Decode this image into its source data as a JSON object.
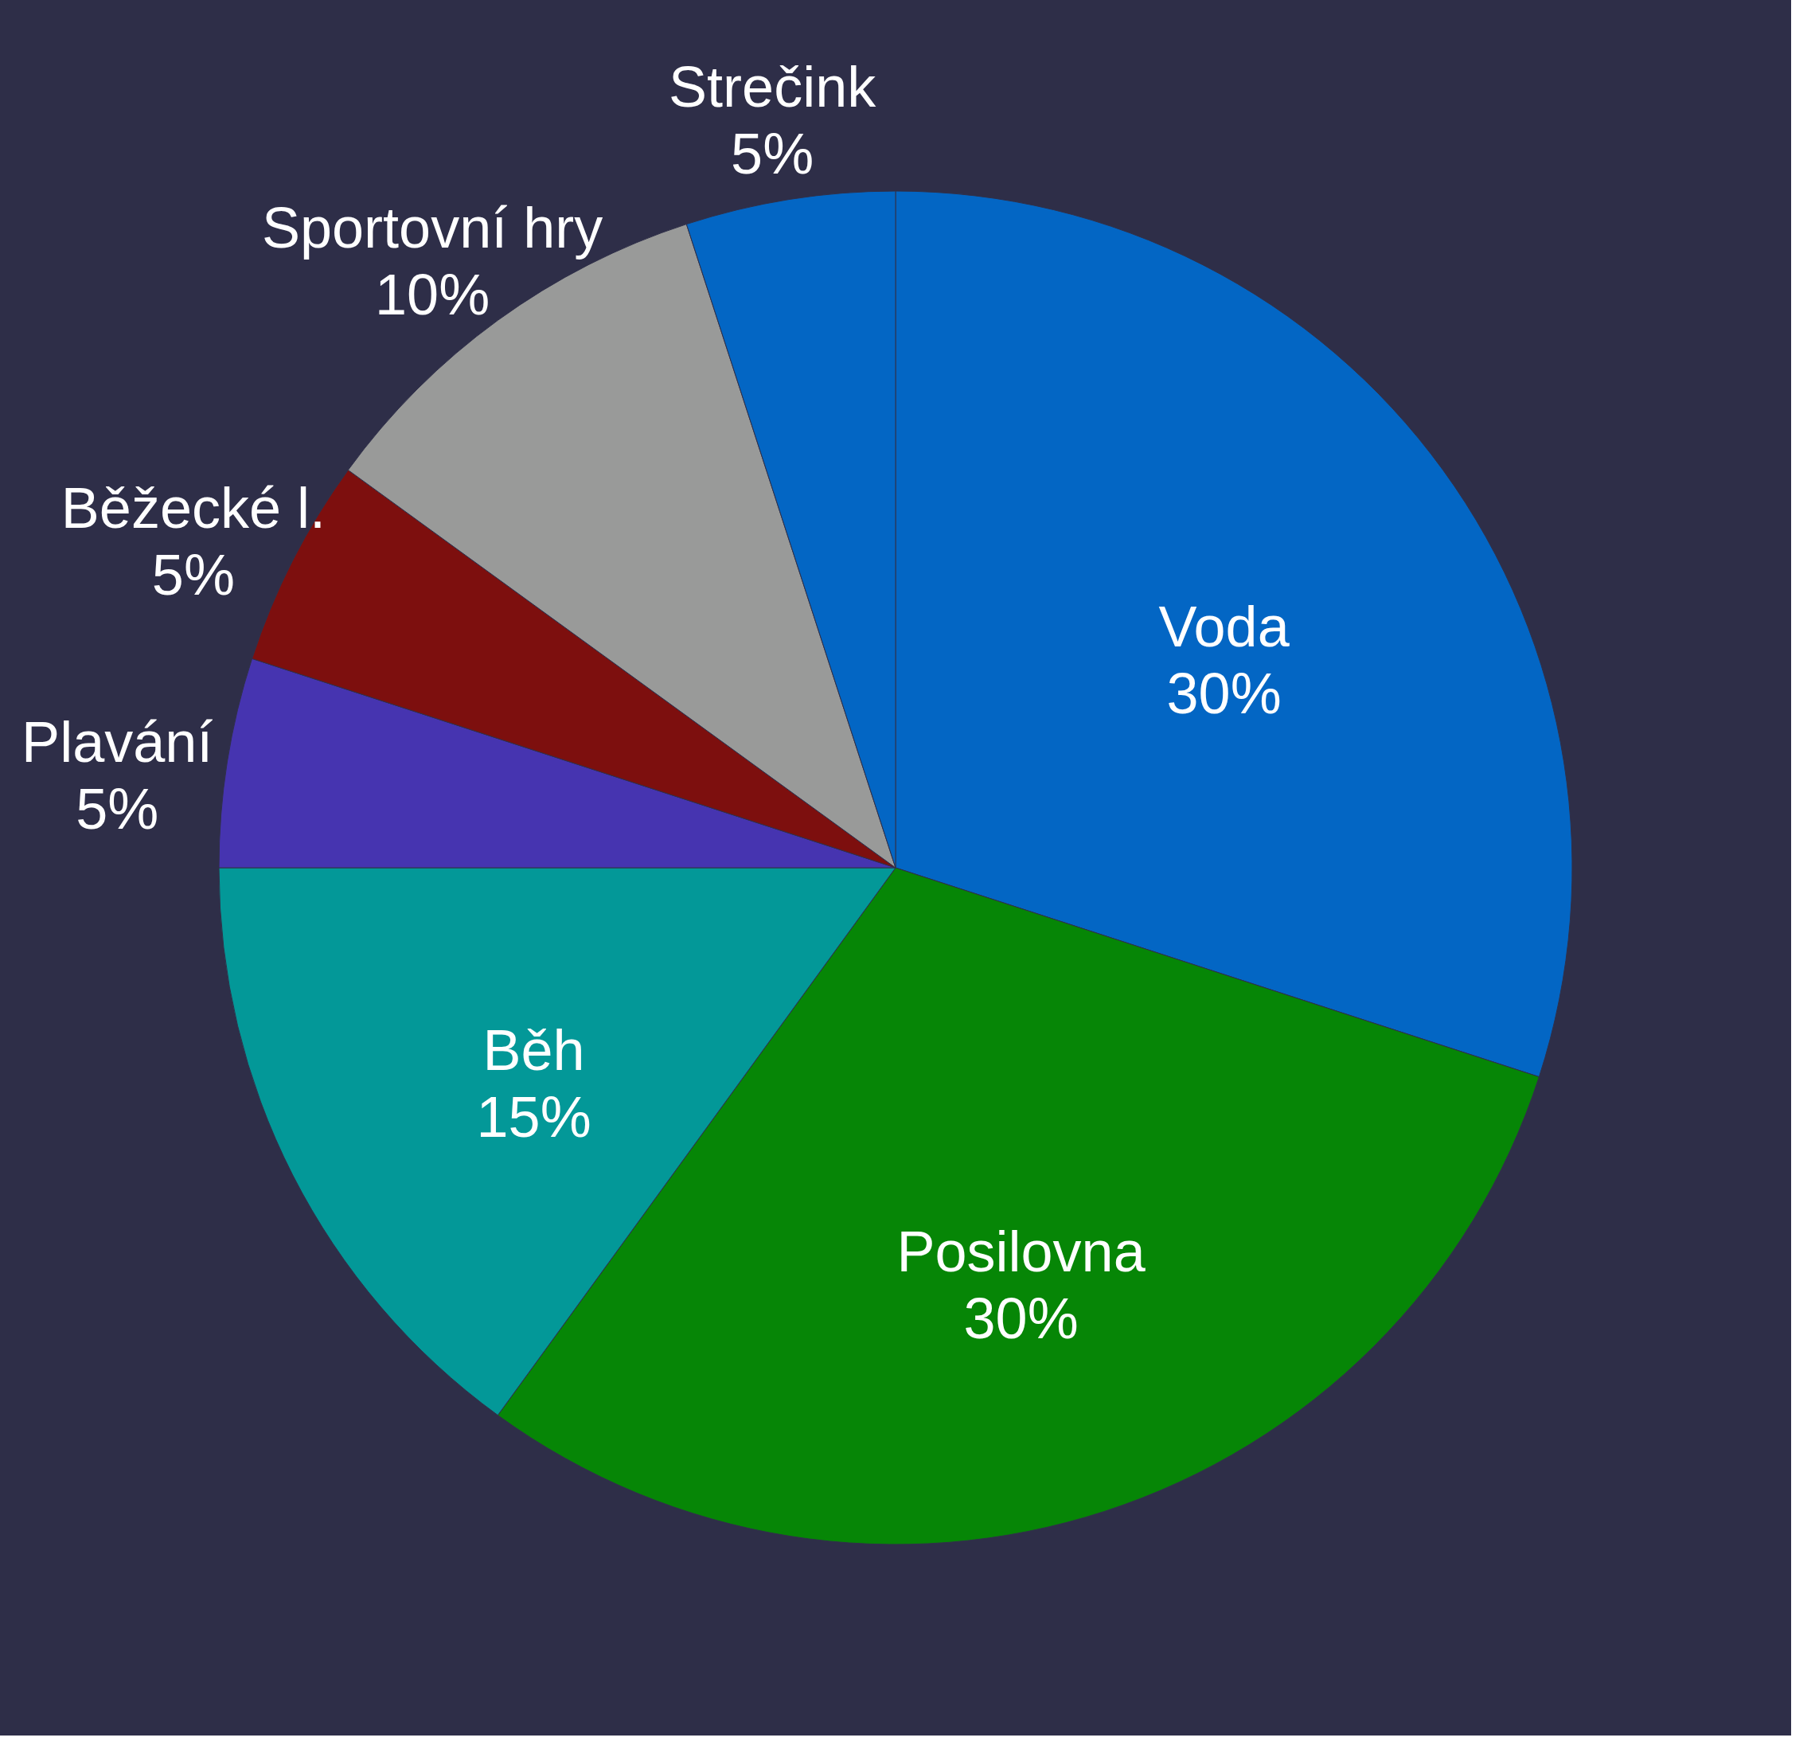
{
  "chart_data": {
    "type": "pie",
    "categories": [
      "Voda",
      "Posilovna",
      "Běh",
      "Plavání",
      "Běžecké l.",
      "Sportovní hry",
      "Strečink"
    ],
    "values": [
      30,
      30,
      15,
      5,
      5,
      10,
      5
    ],
    "value_labels": [
      "30%",
      "30%",
      "15%",
      "5%",
      "5%",
      "10%",
      "5%"
    ],
    "colors": [
      "#0366c4",
      "#068606",
      "#039898",
      "#4634b0",
      "#7d0f0e",
      "#999a99",
      "#0366c4"
    ]
  }
}
